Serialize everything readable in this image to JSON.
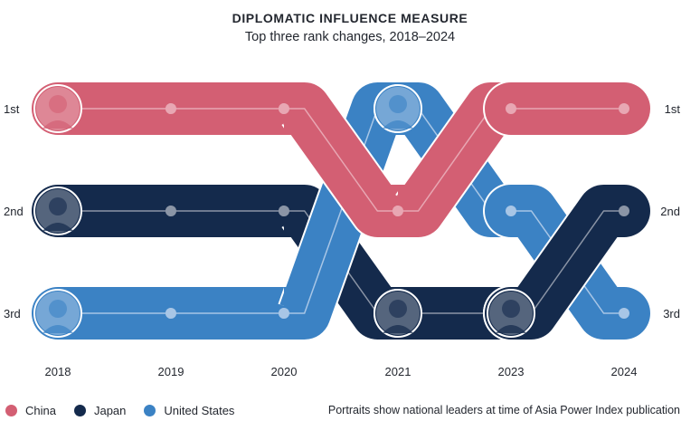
{
  "chart_data": {
    "type": "bump",
    "title": "DIPLOMATIC INFLUENCE MEASURE",
    "subtitle": "Top three rank changes, 2018–2024",
    "x": [
      "2018",
      "2019",
      "2020",
      "2021",
      "2023",
      "2024"
    ],
    "rank_labels": [
      "1st",
      "2nd",
      "3rd"
    ],
    "series": [
      {
        "name": "China",
        "color": "#d35f73",
        "dot": "#e8a7b3",
        "ranks": [
          1,
          1,
          1,
          2,
          1,
          1
        ],
        "portraits_at": [
          "2018"
        ]
      },
      {
        "name": "Japan",
        "color": "#142a4c",
        "dot": "#8b95a6",
        "ranks": [
          2,
          2,
          2,
          3,
          3,
          2
        ],
        "portraits_at": [
          "2018",
          "2021",
          "2023"
        ]
      },
      {
        "name": "United States",
        "color": "#3b82c4",
        "dot": "#a8c6e6",
        "ranks": [
          3,
          3,
          3,
          1,
          2,
          3
        ],
        "portraits_at": [
          "2018",
          "2021"
        ]
      }
    ],
    "legend_position": "bottom-left",
    "note": "Portraits show national leaders at time of Asia Power Index publication"
  }
}
